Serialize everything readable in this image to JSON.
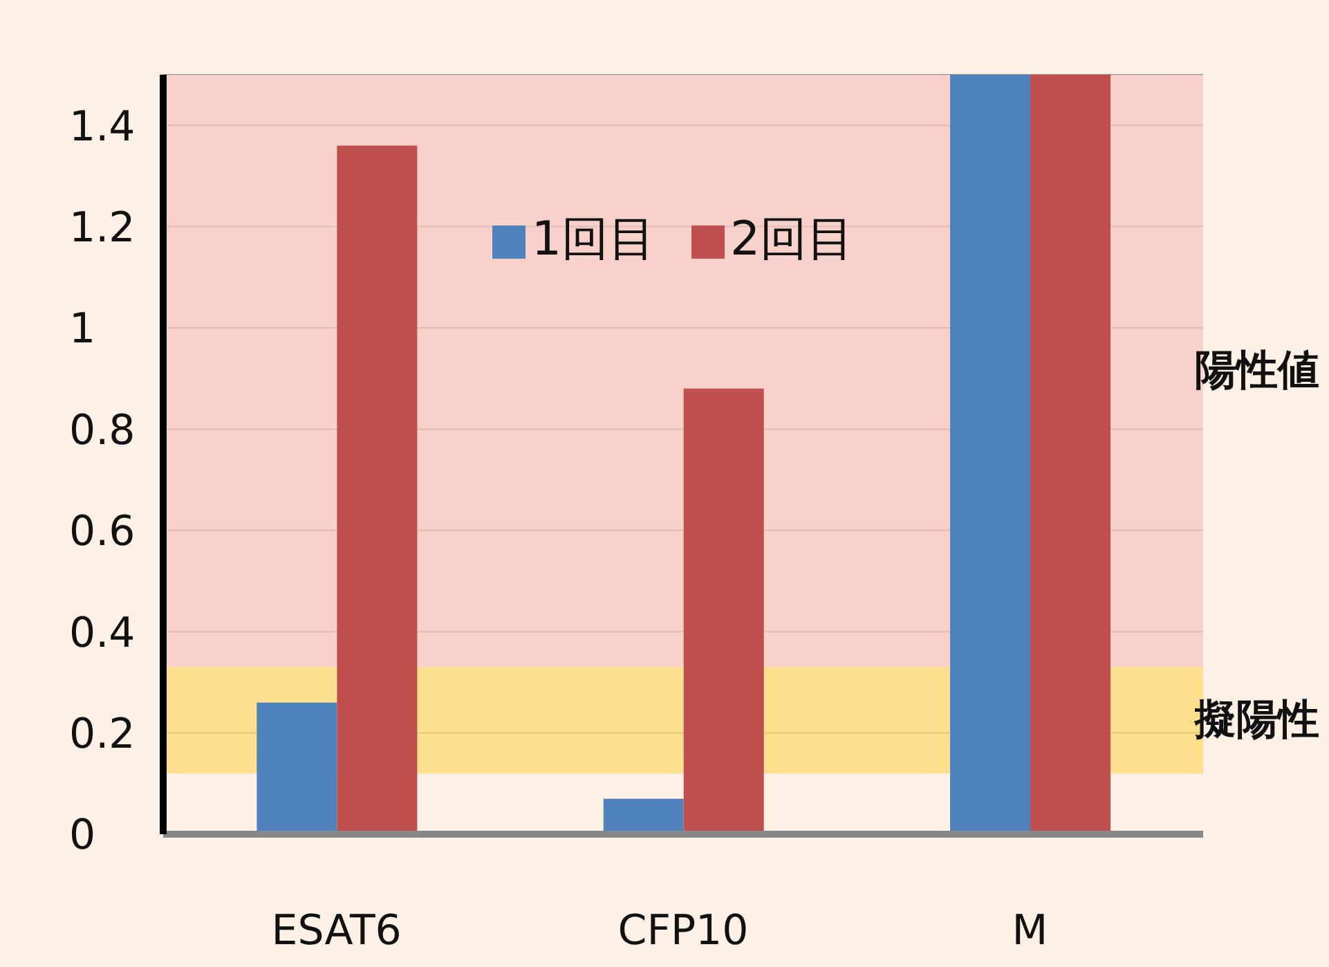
{
  "chart_data": {
    "type": "bar",
    "categories": [
      "ESAT6",
      "CFP10",
      "M"
    ],
    "series": [
      {
        "name": "1回目",
        "color": "#4f81bd",
        "values": [
          0.26,
          0.07,
          1.5
        ]
      },
      {
        "name": "2回目",
        "color": "#c0504d",
        "values": [
          1.36,
          0.88,
          1.5
        ]
      }
    ],
    "ylim": [
      0,
      1.5
    ],
    "yticks": [
      0,
      0.2,
      0.4,
      0.6,
      0.8,
      1,
      1.2,
      1.4
    ],
    "grid": "y",
    "legend": "top",
    "bands": [
      {
        "axis": "y",
        "from": 0.33,
        "to": 1.5,
        "label": "陽性値",
        "color": "#f7c6c2"
      },
      {
        "axis": "y",
        "from": 0.12,
        "to": 0.33,
        "label": "擬陽性",
        "color": "#fcd870"
      }
    ]
  }
}
